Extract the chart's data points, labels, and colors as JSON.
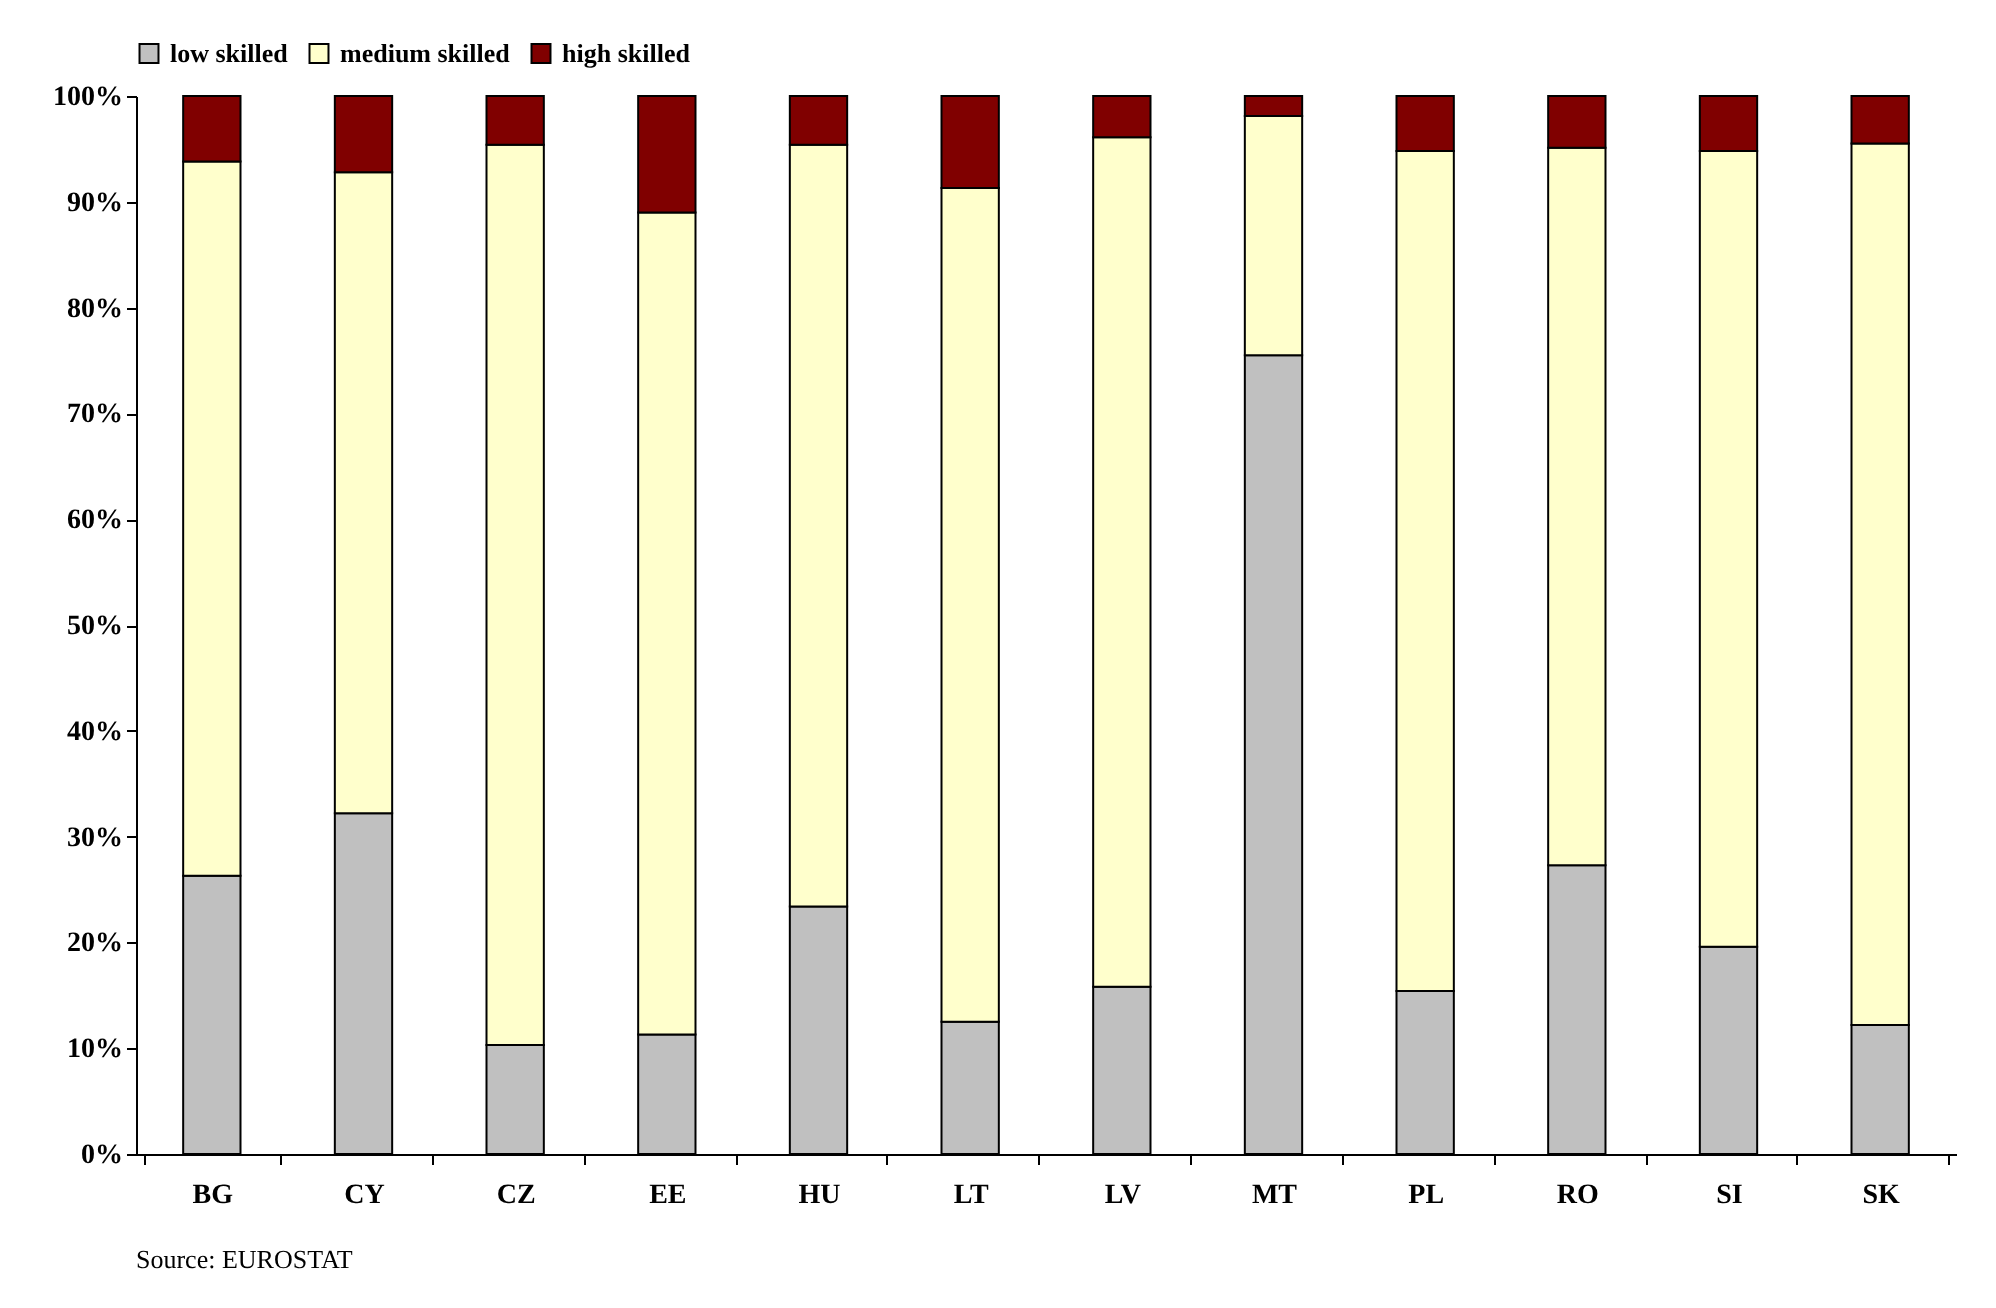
{
  "chart_data": {
    "type": "bar",
    "stacked": true,
    "categories": [
      "BG",
      "CY",
      "CZ",
      "EE",
      "HU",
      "LT",
      "LV",
      "MT",
      "PL",
      "RO",
      "SI",
      "SK"
    ],
    "series": [
      {
        "name": "low skilled",
        "color": "#c0c0c0",
        "values": [
          26.3,
          32.2,
          10.3,
          11.3,
          23.4,
          12.5,
          15.8,
          75.5,
          15.4,
          27.3,
          19.6,
          12.2
        ]
      },
      {
        "name": "medium skilled",
        "color": "#ffffcc",
        "values": [
          67.5,
          60.6,
          85.1,
          77.7,
          72.0,
          78.8,
          80.3,
          22.6,
          79.4,
          67.8,
          75.2,
          83.3
        ]
      },
      {
        "name": "high skilled",
        "color": "#800000",
        "values": [
          6.2,
          7.2,
          4.6,
          11.0,
          4.6,
          8.7,
          3.9,
          1.9,
          5.2,
          4.9,
          5.2,
          4.5
        ]
      }
    ],
    "ylim": [
      0,
      100
    ],
    "yticks": [
      {
        "value": 0,
        "label": "0%"
      },
      {
        "value": 10,
        "label": "10%"
      },
      {
        "value": 20,
        "label": "20%"
      },
      {
        "value": 30,
        "label": "30%"
      },
      {
        "value": 40,
        "label": "40%"
      },
      {
        "value": 50,
        "label": "50%"
      },
      {
        "value": 60,
        "label": "60%"
      },
      {
        "value": 70,
        "label": "70%"
      },
      {
        "value": 80,
        "label": "80%"
      },
      {
        "value": 90,
        "label": "90%"
      },
      {
        "value": 100,
        "label": "100%"
      }
    ],
    "legend": "top",
    "grid": false,
    "annotations": [
      "Source: EUROSTAT"
    ]
  }
}
